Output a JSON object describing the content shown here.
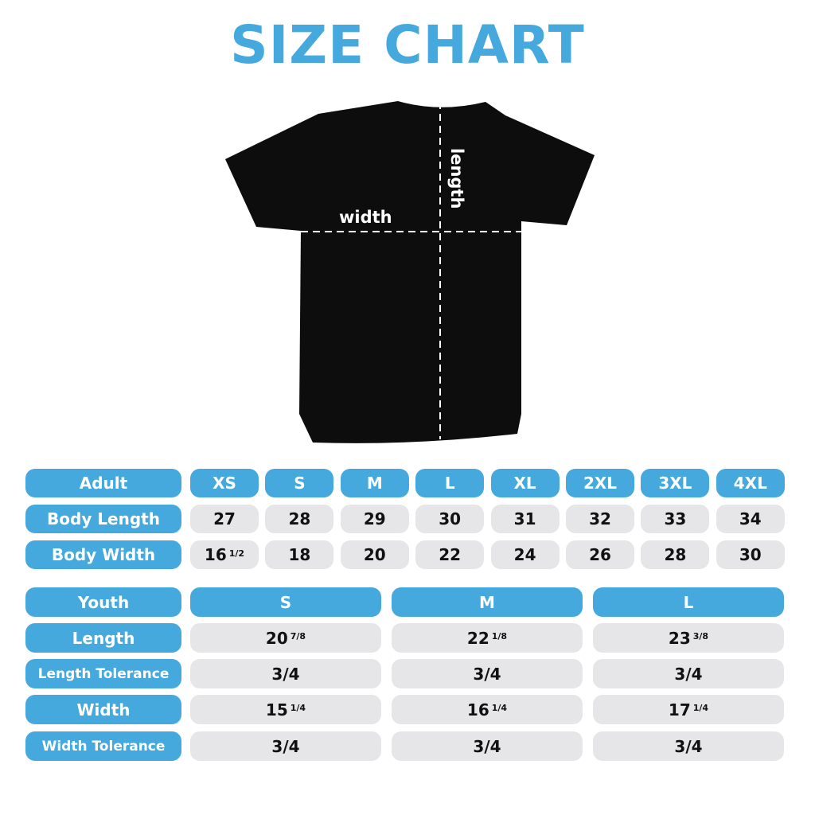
{
  "title": "SIZE CHART",
  "colors": {
    "accent": "#45a9de",
    "cell": "#e6e6e8",
    "shirt": "#0d0d0d"
  },
  "shirt": {
    "width_label": "width",
    "length_label": "length"
  },
  "adult": {
    "header": "Adult",
    "sizes": [
      "XS",
      "S",
      "M",
      "L",
      "XL",
      "2XL",
      "3XL",
      "4XL"
    ],
    "rows": [
      {
        "label": "Body Length",
        "values": [
          {
            "n": "27",
            "f": ""
          },
          {
            "n": "28",
            "f": ""
          },
          {
            "n": "29",
            "f": ""
          },
          {
            "n": "30",
            "f": ""
          },
          {
            "n": "31",
            "f": ""
          },
          {
            "n": "32",
            "f": ""
          },
          {
            "n": "33",
            "f": ""
          },
          {
            "n": "34",
            "f": ""
          }
        ]
      },
      {
        "label": "Body Width",
        "values": [
          {
            "n": "16",
            "f": "1/2"
          },
          {
            "n": "18",
            "f": ""
          },
          {
            "n": "20",
            "f": ""
          },
          {
            "n": "22",
            "f": ""
          },
          {
            "n": "24",
            "f": ""
          },
          {
            "n": "26",
            "f": ""
          },
          {
            "n": "28",
            "f": ""
          },
          {
            "n": "30",
            "f": ""
          }
        ]
      }
    ]
  },
  "youth": {
    "header": "Youth",
    "sizes": [
      "S",
      "M",
      "L"
    ],
    "rows": [
      {
        "label": "Length",
        "values": [
          {
            "n": "20",
            "f": "7/8"
          },
          {
            "n": "22",
            "f": "1/8"
          },
          {
            "n": "23",
            "f": "3/8"
          }
        ]
      },
      {
        "label": "Length Tolerance",
        "values": [
          {
            "n": "3/4",
            "f": ""
          },
          {
            "n": "3/4",
            "f": ""
          },
          {
            "n": "3/4",
            "f": ""
          }
        ]
      },
      {
        "label": "Width",
        "values": [
          {
            "n": "15",
            "f": "1/4"
          },
          {
            "n": "16",
            "f": "1/4"
          },
          {
            "n": "17",
            "f": "1/4"
          }
        ]
      },
      {
        "label": "Width Tolerance",
        "values": [
          {
            "n": "3/4",
            "f": ""
          },
          {
            "n": "3/4",
            "f": ""
          },
          {
            "n": "3/4",
            "f": ""
          }
        ]
      }
    ]
  }
}
